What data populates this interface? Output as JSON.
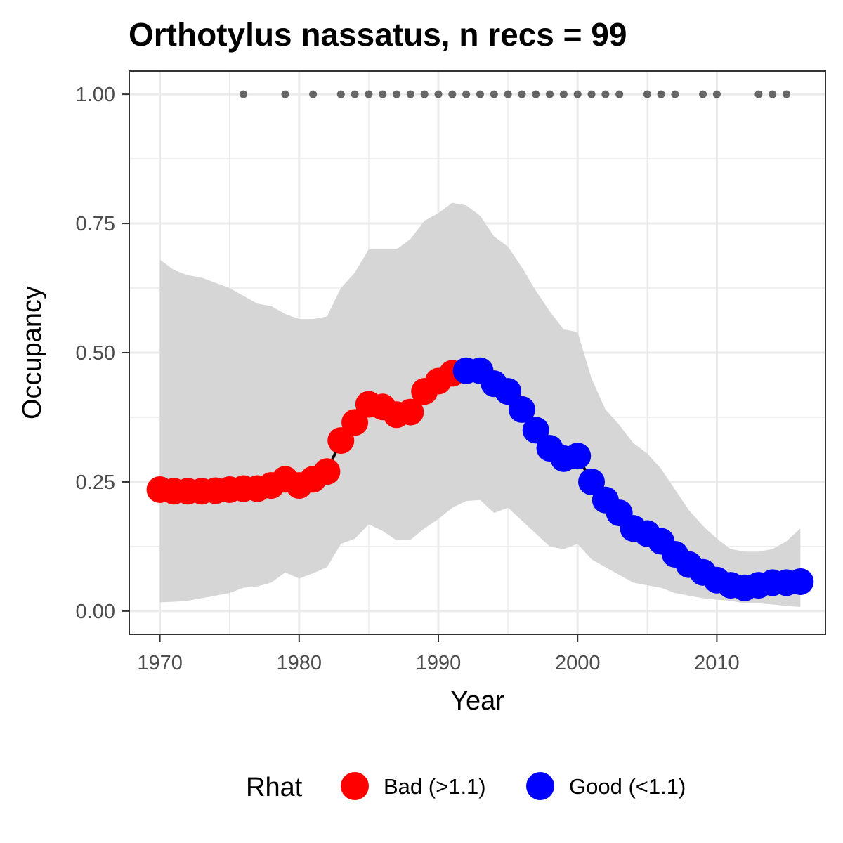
{
  "chart_data": {
    "type": "line",
    "title": "Orthotylus nassatus, n recs = 99",
    "xlabel": "Year",
    "ylabel": "Occupancy",
    "xlim": [
      1967.8,
      2017.8
    ],
    "ylim": [
      -0.045,
      1.045
    ],
    "x_ticks": [
      1970,
      1980,
      1990,
      2000,
      2010
    ],
    "x_tick_labels": [
      "1970",
      "1980",
      "1990",
      "2000",
      "2010"
    ],
    "y_ticks": [
      0,
      0.25,
      0.5,
      0.75,
      1
    ],
    "y_tick_labels": [
      "0.00",
      "0.25",
      "0.50",
      "0.75",
      "1.00"
    ],
    "grid": true,
    "legend": {
      "title": "Rhat",
      "placement": "bottom",
      "items": [
        {
          "label": "Bad (>1.1)",
          "color": "#ff0000"
        },
        {
          "label": "Good (<1.1)",
          "color": "#0000ff"
        }
      ]
    },
    "colors": {
      "bad": "#ff0000",
      "good": "#0000ff",
      "ribbon": "#d6d6d6",
      "line": "#000000",
      "record_points": "#666666",
      "grid": "#ebebeb"
    },
    "series": {
      "years": [
        1970,
        1971,
        1972,
        1973,
        1974,
        1975,
        1976,
        1977,
        1978,
        1979,
        1980,
        1981,
        1982,
        1983,
        1984,
        1985,
        1986,
        1987,
        1988,
        1989,
        1990,
        1991,
        1992,
        1993,
        1994,
        1995,
        1996,
        1997,
        1998,
        1999,
        2000,
        2001,
        2002,
        2003,
        2004,
        2005,
        2006,
        2007,
        2008,
        2009,
        2010,
        2011,
        2012,
        2013,
        2014,
        2015,
        2016
      ],
      "mean": [
        0.235,
        0.232,
        0.232,
        0.232,
        0.233,
        0.235,
        0.237,
        0.237,
        0.243,
        0.255,
        0.243,
        0.255,
        0.27,
        0.33,
        0.365,
        0.4,
        0.395,
        0.38,
        0.385,
        0.425,
        0.445,
        0.46,
        0.465,
        0.465,
        0.44,
        0.425,
        0.39,
        0.35,
        0.315,
        0.295,
        0.3,
        0.25,
        0.215,
        0.19,
        0.16,
        0.15,
        0.135,
        0.11,
        0.09,
        0.075,
        0.06,
        0.05,
        0.045,
        0.05,
        0.055,
        0.055,
        0.057
      ],
      "lower": [
        0.017,
        0.018,
        0.02,
        0.025,
        0.03,
        0.035,
        0.045,
        0.048,
        0.055,
        0.075,
        0.063,
        0.073,
        0.085,
        0.13,
        0.14,
        0.168,
        0.155,
        0.137,
        0.138,
        0.16,
        0.178,
        0.2,
        0.213,
        0.215,
        0.19,
        0.2,
        0.175,
        0.15,
        0.125,
        0.12,
        0.13,
        0.1,
        0.085,
        0.07,
        0.055,
        0.05,
        0.045,
        0.035,
        0.03,
        0.025,
        0.022,
        0.02,
        0.015,
        0.015,
        0.013,
        0.01,
        0.008
      ],
      "upper": [
        0.68,
        0.66,
        0.65,
        0.645,
        0.635,
        0.625,
        0.61,
        0.595,
        0.59,
        0.575,
        0.565,
        0.565,
        0.57,
        0.625,
        0.655,
        0.7,
        0.7,
        0.7,
        0.72,
        0.755,
        0.77,
        0.79,
        0.785,
        0.765,
        0.725,
        0.705,
        0.665,
        0.62,
        0.58,
        0.545,
        0.54,
        0.45,
        0.39,
        0.36,
        0.325,
        0.305,
        0.275,
        0.235,
        0.195,
        0.165,
        0.14,
        0.12,
        0.115,
        0.115,
        0.12,
        0.135,
        0.16
      ],
      "rhat_status": [
        "bad",
        "bad",
        "bad",
        "bad",
        "bad",
        "bad",
        "bad",
        "bad",
        "bad",
        "bad",
        "bad",
        "bad",
        "bad",
        "bad",
        "bad",
        "bad",
        "bad",
        "bad",
        "bad",
        "bad",
        "bad",
        "bad",
        "good",
        "good",
        "good",
        "good",
        "good",
        "good",
        "good",
        "good",
        "good",
        "good",
        "good",
        "good",
        "good",
        "good",
        "good",
        "good",
        "good",
        "good",
        "good",
        "good",
        "good",
        "good",
        "good",
        "good",
        "good"
      ]
    },
    "record_years": [
      1976,
      1979,
      1981,
      1983,
      1984,
      1985,
      1986,
      1987,
      1988,
      1989,
      1990,
      1991,
      1992,
      1993,
      1994,
      1995,
      1996,
      1997,
      1998,
      1999,
      2000,
      2001,
      2002,
      2003,
      2005,
      2006,
      2007,
      2009,
      2010,
      2013,
      2014,
      2015
    ],
    "record_value": 1.0
  }
}
